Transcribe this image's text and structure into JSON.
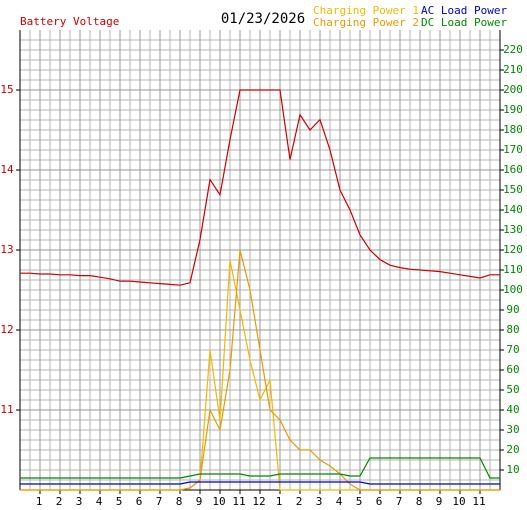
{
  "chart_data": {
    "type": "line",
    "title": "01/23/2026",
    "x": [
      0,
      0.5,
      1,
      1.5,
      2,
      2.5,
      3,
      3.5,
      4,
      4.5,
      5,
      5.5,
      6,
      6.5,
      7,
      7.5,
      8,
      8.5,
      9,
      9.5,
      10,
      10.5,
      11,
      11.5,
      12,
      12.5,
      13,
      13.5,
      14,
      14.5,
      15,
      15.5,
      16,
      16.5,
      17,
      17.5,
      18,
      18.5,
      19,
      19.5,
      20,
      20.5,
      21,
      21.5,
      22,
      22.5,
      23,
      23.5,
      24
    ],
    "xlim": [
      0,
      24
    ],
    "xticks": [
      1,
      2,
      3,
      4,
      5,
      6,
      7,
      8,
      9,
      10,
      11,
      12,
      {
        "value": 13,
        "label": "1"
      },
      {
        "value": 14,
        "label": "2"
      },
      {
        "value": 15,
        "label": "3"
      },
      {
        "value": 16,
        "label": "4"
      },
      {
        "value": 17,
        "label": "5"
      },
      {
        "value": 18,
        "label": "6"
      },
      {
        "value": 19,
        "label": "7"
      },
      {
        "value": 20,
        "label": "8"
      },
      {
        "value": 21,
        "label": "9"
      },
      {
        "value": 22,
        "label": "10"
      },
      {
        "value": 23,
        "label": "11"
      }
    ],
    "ylim": [
      10,
      15.75
    ],
    "yticks": [
      11,
      12,
      13,
      14,
      15
    ],
    "y2lim": [
      0,
      230
    ],
    "y2ticks": [
      10,
      20,
      30,
      40,
      50,
      60,
      70,
      80,
      90,
      100,
      110,
      120,
      130,
      140,
      150,
      160,
      170,
      180,
      190,
      200,
      210,
      220
    ],
    "grid": true,
    "series": [
      {
        "name": "Battery Voltage",
        "color": "#cc0000",
        "values": [
          12.71,
          12.71,
          12.7,
          12.7,
          12.69,
          12.69,
          12.68,
          12.68,
          12.66,
          12.64,
          12.61,
          12.61,
          12.6,
          12.59,
          12.58,
          12.57,
          12.56,
          12.59,
          13.13,
          13.88,
          13.69,
          14.38,
          15,
          15,
          15,
          15,
          15,
          14.13,
          14.69,
          14.5,
          14.63,
          14.25,
          13.75,
          13.5,
          13.19,
          13.0,
          12.88,
          12.81,
          12.78,
          12.76,
          12.75,
          12.74,
          12.73,
          12.71,
          12.69,
          12.67,
          12.65,
          12.69,
          12.69
        ]
      },
      {
        "name": "Charging Power 1",
        "color": "#f5b800",
        "axis": "y2",
        "values": [
          0,
          0,
          0,
          0,
          0,
          0,
          0,
          0,
          0,
          0,
          0,
          0,
          0,
          0,
          0,
          0,
          0,
          1,
          5,
          70,
          35,
          115,
          90,
          65,
          45,
          55,
          0,
          0,
          0,
          0,
          0,
          0,
          0,
          0,
          0,
          0,
          0,
          0,
          0,
          0,
          0,
          0,
          0,
          0,
          0,
          0,
          0,
          0,
          0
        ]
      },
      {
        "name": "Charging Power 2",
        "color": "#e89a00",
        "axis": "y2",
        "values": [
          0,
          0,
          0,
          0,
          0,
          0,
          0,
          0,
          0,
          0,
          0,
          0,
          0,
          0,
          0,
          0,
          0,
          1,
          5,
          40,
          30,
          60,
          120,
          100,
          70,
          40,
          35,
          25,
          20,
          20,
          15,
          12,
          8,
          3,
          0,
          0,
          0,
          0,
          0,
          0,
          0,
          0,
          0,
          0,
          0,
          0,
          0,
          0,
          0
        ]
      },
      {
        "name": "AC Load Power",
        "color": "#0000cc",
        "axis": "y2",
        "values": [
          3,
          3,
          3,
          3,
          3,
          3,
          3,
          3,
          3,
          3,
          3,
          3,
          3,
          3,
          3,
          3,
          3,
          4,
          4,
          4,
          4,
          4,
          4,
          4,
          4,
          4,
          4,
          4,
          4,
          4,
          4,
          4,
          4,
          4,
          4,
          3,
          3,
          3,
          3,
          3,
          3,
          3,
          3,
          3,
          3,
          3,
          3,
          3,
          3
        ]
      },
      {
        "name": "DC Load Power",
        "color": "#008800",
        "axis": "y2",
        "values": [
          6,
          6,
          6,
          6,
          6,
          6,
          6,
          6,
          6,
          6,
          6,
          6,
          6,
          6,
          6,
          6,
          6,
          7,
          8,
          8,
          8,
          8,
          8,
          7,
          7,
          7,
          8,
          8,
          8,
          8,
          8,
          8,
          8,
          7,
          7,
          16,
          16,
          16,
          16,
          16,
          16,
          16,
          16,
          16,
          16,
          16,
          16,
          6,
          6
        ]
      }
    ]
  }
}
